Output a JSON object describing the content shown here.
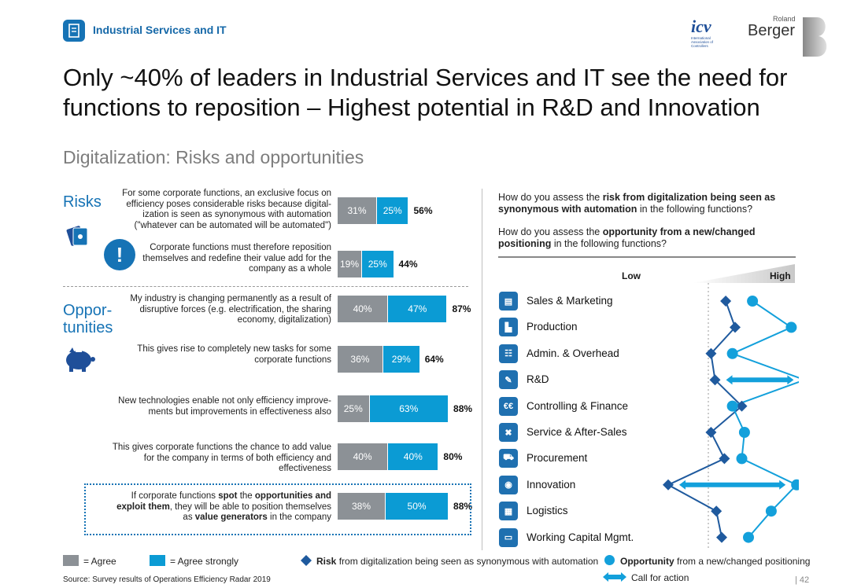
{
  "header": {
    "section": "Industrial Services and IT",
    "icv_logo": "icv",
    "icv_subtext": "International Association of Controllers",
    "rb_small": "Roland",
    "rb_big": "Berger"
  },
  "title": "Only ~40% of leaders in Industrial Services and IT see the need for functions to reposition – Highest potential in R&D and Innovation",
  "subtitle": "Digitalization: Risks and opportunities",
  "risks_label": "Risks",
  "opps_label_1": "Oppor-",
  "opps_label_2": "tunities",
  "chart_data": [
    {
      "type": "bar",
      "stacked": true,
      "series": [
        {
          "name": "= Agree",
          "color": "#8c9196"
        },
        {
          "name": "= Agree strongly",
          "color": "#0b9bd4"
        }
      ],
      "rows": [
        {
          "text": "For some corporate functions, an exclusive focus on efficiency poses considerable risks because digital-ization is seen as synonymous with automation (\"whatever can be automated will be automated\")",
          "agree": 31,
          "strong": 25,
          "agree_label": "31%",
          "strong_label": "25%",
          "total": "56%"
        },
        {
          "text": "Corporate functions must therefore reposition themselves and redefine their value add for the company as a whole",
          "agree": 19,
          "strong": 25,
          "agree_label": "19%",
          "strong_label": "25%",
          "total": "44%"
        },
        {
          "text": "My industry is changing permanently as a result of disruptive forces (e.g. electrification, the sharing economy, digitalization)",
          "agree": 40,
          "strong": 47,
          "agree_label": "40%",
          "strong_label": "47%",
          "total": "87%"
        },
        {
          "text": "This gives rise to completely new tasks for some corporate functions",
          "agree": 36,
          "strong": 29,
          "agree_label": "36%",
          "strong_label": "29%",
          "total": "64%"
        },
        {
          "text": "New technologies enable not only efficiency improve-ments but improvements in effectiveness also",
          "agree": 25,
          "strong": 63,
          "agree_label": "25%",
          "strong_label": "63%",
          "total": "88%"
        },
        {
          "text": "This gives corporate functions the chance to add value for the company in terms of both efficiency and effectiveness",
          "agree": 40,
          "strong": 40,
          "agree_label": "40%",
          "strong_label": "40%",
          "total": "80%"
        },
        {
          "text_html_parts": [
            "If corporate functions ",
            "spot",
            " the ",
            "opportunities and exploit them",
            ", they will be able to position themselves as ",
            "value generators",
            " in the company"
          ],
          "agree": 38,
          "strong": 50,
          "agree_label": "38%",
          "strong_label": "50%",
          "total": "88%"
        }
      ]
    },
    {
      "type": "line",
      "question1_parts": [
        "How do you assess the ",
        "risk from digitalization being seen as synonymous with automation",
        " in the following functions?"
      ],
      "question2_parts": [
        "How do you assess the ",
        "opportunity from a new/changed positioning",
        " in the following functions?"
      ],
      "scale_low": "Low",
      "scale_high": "High",
      "categories": [
        "Sales & Marketing",
        "Production",
        "Admin. & Overhead",
        "R&D",
        "Controlling & Finance",
        "Service & After-Sales",
        "Procurement",
        "Innovation",
        "Logistics",
        "Working Capital Mgmt."
      ],
      "icons": [
        "monitor-icon",
        "factory-icon",
        "people-icon",
        "pencil-icon",
        "euro-icon",
        "tools-icon",
        "cart-icon",
        "lightbulb-icon",
        "logistics-icon",
        "money-icon"
      ],
      "icon_glyphs": [
        "▤",
        "▙",
        "☷",
        "✎",
        "€€",
        "✖",
        "⛟",
        "◉",
        "▦",
        "▭"
      ],
      "risk": [
        0.13,
        0.2,
        0.02,
        0.05,
        0.25,
        0.02,
        0.12,
        -0.3,
        0.06,
        0.1
      ],
      "opportunity": [
        0.33,
        0.62,
        0.18,
        0.72,
        0.18,
        0.27,
        0.25,
        0.66,
        0.47,
        0.3
      ],
      "calls_for_action": [
        "R&D",
        "Innovation"
      ],
      "risk_color": "#1f5a9e",
      "opportunity_color": "#13a0db"
    }
  ],
  "legend": {
    "agree": "= Agree",
    "strong": "= Agree strongly",
    "risk_bold": "Risk",
    "risk_rest": " from digitalization being seen as synonymous with automation",
    "opp_bold": "Opportunity",
    "opp_rest": " from a new/changed positioning",
    "call": "Call for action"
  },
  "source": "Source: Survey results of Operations Efficiency Radar 2019",
  "page_number": "42"
}
